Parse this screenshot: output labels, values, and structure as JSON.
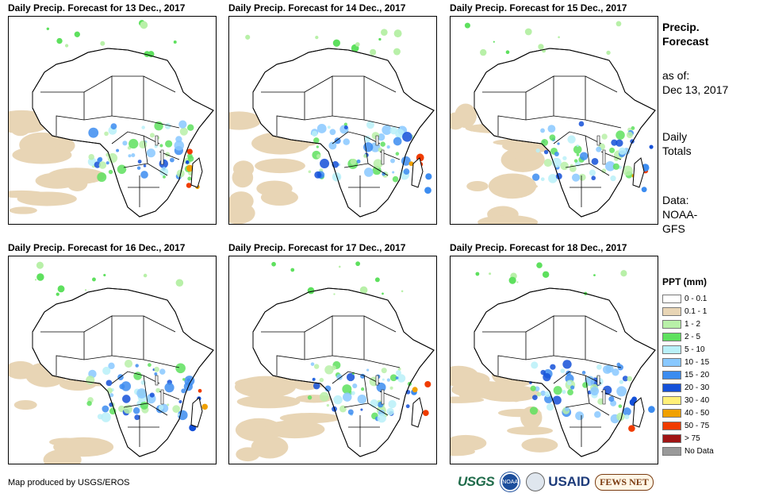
{
  "panels": [
    {
      "title": "Daily Precip. Forecast for 13 Dec., 2017"
    },
    {
      "title": "Daily Precip. Forecast for 14 Dec., 2017"
    },
    {
      "title": "Daily Precip. Forecast for 15 Dec., 2017"
    },
    {
      "title": "Daily Precip. Forecast for 16 Dec., 2017"
    },
    {
      "title": "Daily Precip. Forecast for 17 Dec., 2017"
    },
    {
      "title": "Daily Precip. Forecast for 18 Dec., 2017"
    }
  ],
  "sidebar": {
    "title_line1": "Precip.",
    "title_line2": "Forecast",
    "asof_label": "as of:",
    "asof_date": "Dec 13, 2017",
    "totals_line1": "Daily",
    "totals_line2": "Totals",
    "data_line1": "Data:",
    "data_line2": "NOAA-",
    "data_line3": "GFS"
  },
  "legend": {
    "title": "PPT (mm)",
    "items": [
      {
        "label": "0 - 0.1",
        "color": "#ffffff"
      },
      {
        "label": "0.1 - 1",
        "color": "#e8d5b5"
      },
      {
        "label": "1 - 2",
        "color": "#b8f0a8"
      },
      {
        "label": "2 - 5",
        "color": "#5ee05e"
      },
      {
        "label": "5 - 10",
        "color": "#b8f0f8"
      },
      {
        "label": "10 - 15",
        "color": "#88c8ff"
      },
      {
        "label": "15 - 20",
        "color": "#3c8cf0"
      },
      {
        "label": "20 - 30",
        "color": "#1450d8"
      },
      {
        "label": "30 - 40",
        "color": "#fff078"
      },
      {
        "label": "40 - 50",
        "color": "#f0a000"
      },
      {
        "label": "50 - 75",
        "color": "#f03c00"
      },
      {
        "label": "> 75",
        "color": "#a01414"
      },
      {
        "label": "No Data",
        "color": "#999999"
      }
    ]
  },
  "footer": {
    "credit": "Map produced by USGS/EROS"
  },
  "logos": {
    "usgs": "USGS",
    "noaa": "NOAA",
    "usaid": "USAID",
    "fews": "FEWS NET"
  }
}
